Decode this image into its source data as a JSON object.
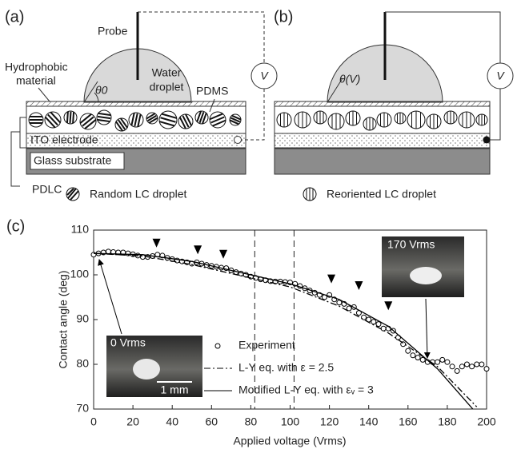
{
  "panels": {
    "a": {
      "label": "(a)",
      "probe": "Probe",
      "water": "Water",
      "droplet": "droplet",
      "hydrophobic1": "Hydrophobic",
      "hydrophobic2": "material",
      "pdms": "PDMS",
      "theta": "θ0",
      "voltage": "V",
      "ito": "ITO electrode",
      "glass": "Glass substrate",
      "pdlc": "PDLC",
      "legend": "Random LC droplet"
    },
    "b": {
      "label": "(b)",
      "theta": "θ(V)",
      "voltage": "V",
      "legend": "Reoriented LC droplet"
    },
    "c": {
      "label": "(c)",
      "inset_left": "0 Vrms",
      "scale_bar": "1 mm",
      "inset_right": "170 Vrms"
    }
  },
  "chart_data": {
    "type": "scatter",
    "xlabel": "Applied voltage (Vrms)",
    "ylabel": "Contact angle (deg)",
    "xlim": [
      0,
      200
    ],
    "ylim": [
      70,
      110
    ],
    "xticks": [
      0,
      20,
      40,
      60,
      80,
      100,
      120,
      140,
      160,
      180,
      200
    ],
    "yticks": [
      70,
      80,
      90,
      100,
      110
    ],
    "vlines": [
      82,
      102
    ],
    "arrowheads": {
      "x": [
        32,
        53,
        66,
        121,
        135,
        150
      ],
      "y": [
        107,
        105.5,
        104.5,
        99,
        97.5,
        93
      ]
    },
    "series": [
      {
        "name": "Experiment",
        "type": "scatter",
        "color": "#000000",
        "x": [
          0,
          2.5,
          5,
          7.5,
          10,
          12.5,
          15,
          17.5,
          20,
          22.5,
          25,
          27.5,
          30,
          32.5,
          35,
          37.5,
          40,
          42.5,
          45,
          47.5,
          50,
          52.5,
          55,
          57.5,
          60,
          62.5,
          65,
          67.5,
          70,
          72.5,
          75,
          77.5,
          80,
          82.5,
          85,
          87.5,
          90,
          92.5,
          95,
          97.5,
          100,
          102.5,
          105,
          107.5,
          110,
          112.5,
          115,
          117.5,
          120,
          122.5,
          125,
          127.5,
          130,
          132.5,
          135,
          137.5,
          140,
          142.5,
          145,
          147.5,
          150,
          152.5,
          155,
          157.5,
          160,
          162.5,
          165,
          167.5,
          170,
          172.5,
          175,
          177.5,
          180,
          182.5,
          185,
          187.5,
          190,
          192.5,
          195,
          197.5,
          200
        ],
        "values": [
          104.5,
          104.8,
          105,
          105.2,
          105.1,
          105,
          105,
          104.8,
          104.6,
          104.3,
          104,
          104,
          104.2,
          104.5,
          104.3,
          103.8,
          103.5,
          103.2,
          103,
          102.8,
          102.5,
          102.8,
          102.5,
          102.2,
          102,
          101.8,
          101.6,
          101.5,
          101,
          100.6,
          100.3,
          100,
          99.6,
          99.3,
          99,
          98.8,
          98.6,
          98.5,
          98.5,
          98.4,
          98.3,
          98,
          97.5,
          97,
          96.5,
          96,
          95.5,
          95,
          95.5,
          94.5,
          93.8,
          93.5,
          92.5,
          92.8,
          91.5,
          90.5,
          90,
          89.5,
          89,
          88,
          88,
          87.5,
          86,
          84.5,
          83,
          82,
          81.5,
          81,
          80.5,
          80.5,
          80.5,
          81,
          80.5,
          79.5,
          78.5,
          79.5,
          80,
          79.5,
          80,
          80,
          79
        ]
      },
      {
        "name": "L-Y eq. with ε = 2.5",
        "type": "line",
        "style": "dashdot",
        "color": "#000000",
        "x": [
          0,
          25,
          50,
          75,
          100,
          125,
          150,
          175,
          195
        ],
        "values": [
          104.8,
          104.2,
          102.3,
          99.8,
          97.3,
          93,
          87,
          79.5,
          70.5
        ]
      },
      {
        "name": "Modified L-Y eq. with εᵥ = 3",
        "type": "line",
        "style": "solid",
        "color": "#000000",
        "x": [
          0,
          25,
          50,
          75,
          100,
          125,
          150,
          175,
          193
        ],
        "values": [
          104.8,
          104.5,
          103,
          100.5,
          98,
          94.5,
          88.5,
          79,
          70
        ]
      }
    ]
  }
}
